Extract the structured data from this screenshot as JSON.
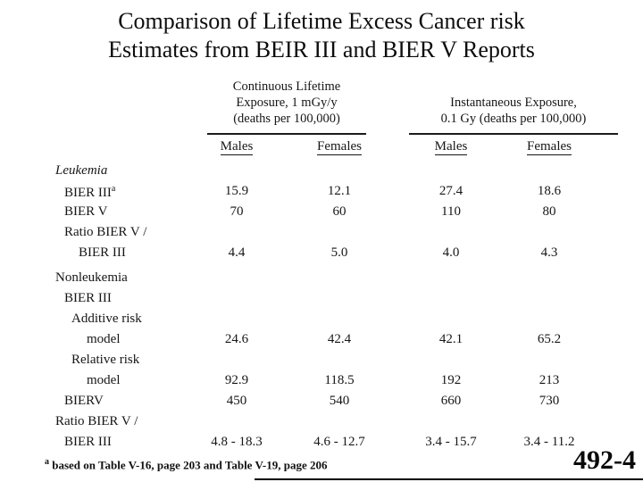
{
  "colors": {
    "background": "#ffffff",
    "text": "#161616"
  },
  "slide": {
    "title_line1": "Comparison of Lifetime Excess Cancer risk",
    "title_line2": "Estimates from BEIR III and BIER V Reports",
    "page_number": "492-4",
    "footnote": {
      "marker": "a",
      "text": " based on Table V-16, page 203 and Table V-19, page 206"
    }
  },
  "table": {
    "col_groups": [
      {
        "lines": [
          "Continuous Lifetime",
          "Exposure, 1 mGy/y",
          "(deaths per 100,000)"
        ]
      },
      {
        "lines": [
          "Instantaneous Exposure,",
          "0.1 Gy (deaths per 100,000)"
        ]
      }
    ],
    "col_headers": [
      "Males",
      "Females",
      "Males",
      "Females"
    ],
    "rows": [
      {
        "label": "Leukemia",
        "italic": true
      },
      {
        "label": "BIER III",
        "sup": "a",
        "values": [
          "15.9",
          "12.1",
          "27.4",
          "18.6"
        ]
      },
      {
        "label": "BIER V",
        "values": [
          "70",
          "60",
          "110",
          "80"
        ]
      },
      {
        "label": "Ratio BIER V /"
      },
      {
        "label": "BIER III",
        "values": [
          "4.4",
          "5.0",
          "4.0",
          "4.3"
        ]
      },
      {
        "label": "Nonleukemia"
      },
      {
        "label": "BIER III"
      },
      {
        "label": "Additive risk"
      },
      {
        "label": "model",
        "values": [
          "24.6",
          "42.4",
          "42.1",
          "65.2"
        ]
      },
      {
        "label": "Relative risk"
      },
      {
        "label": "model",
        "values": [
          "92.9",
          "118.5",
          "192",
          "213"
        ]
      },
      {
        "label": "BIERV",
        "values": [
          "450",
          "540",
          "660",
          "730"
        ]
      },
      {
        "label": "Ratio BIER V /"
      },
      {
        "label": "BIER III",
        "values": [
          "4.8 - 18.3",
          "4.6 - 12.7",
          "3.4 - 15.7",
          "3.4 - 11.2"
        ]
      }
    ]
  }
}
